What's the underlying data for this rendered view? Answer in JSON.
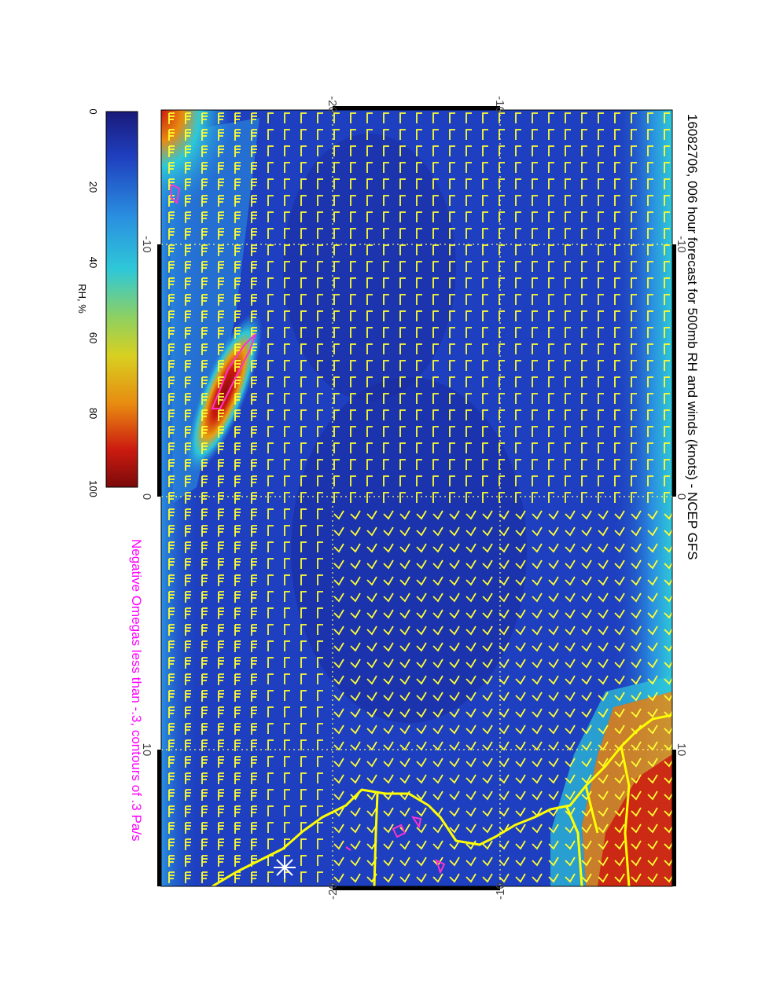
{
  "title": "16082706, 006 hour forecast for 500mb RH and winds (knots) - NCEP GFS",
  "subtitle": "Negative Omegas less than -.3, contours of .3 Pa/s",
  "colorbar": {
    "label": "RH, %",
    "ticks": [
      "0",
      "20",
      "40",
      "60",
      "80",
      "100"
    ],
    "colors": [
      "#1a1a7a",
      "#1f3fbf",
      "#2a8fe0",
      "#2ec8d8",
      "#8fd060",
      "#d8d020",
      "#e88a10",
      "#cc1a10",
      "#7a0a0a"
    ]
  },
  "axes": {
    "lon_ticks_top": [
      "-20",
      "-10"
    ],
    "lon_ticks_bottom": [
      "-20",
      "-10"
    ],
    "lat_ticks_left": [
      "-10",
      "0",
      "10"
    ],
    "lat_ticks_right": [
      "-10",
      "0",
      "10"
    ]
  },
  "colors": {
    "background_field": "#1e3fc0",
    "barb": "#ffff33",
    "coast": "#ffff00",
    "omega_contour": "#ff33cc",
    "grid": "#ffff66"
  }
}
